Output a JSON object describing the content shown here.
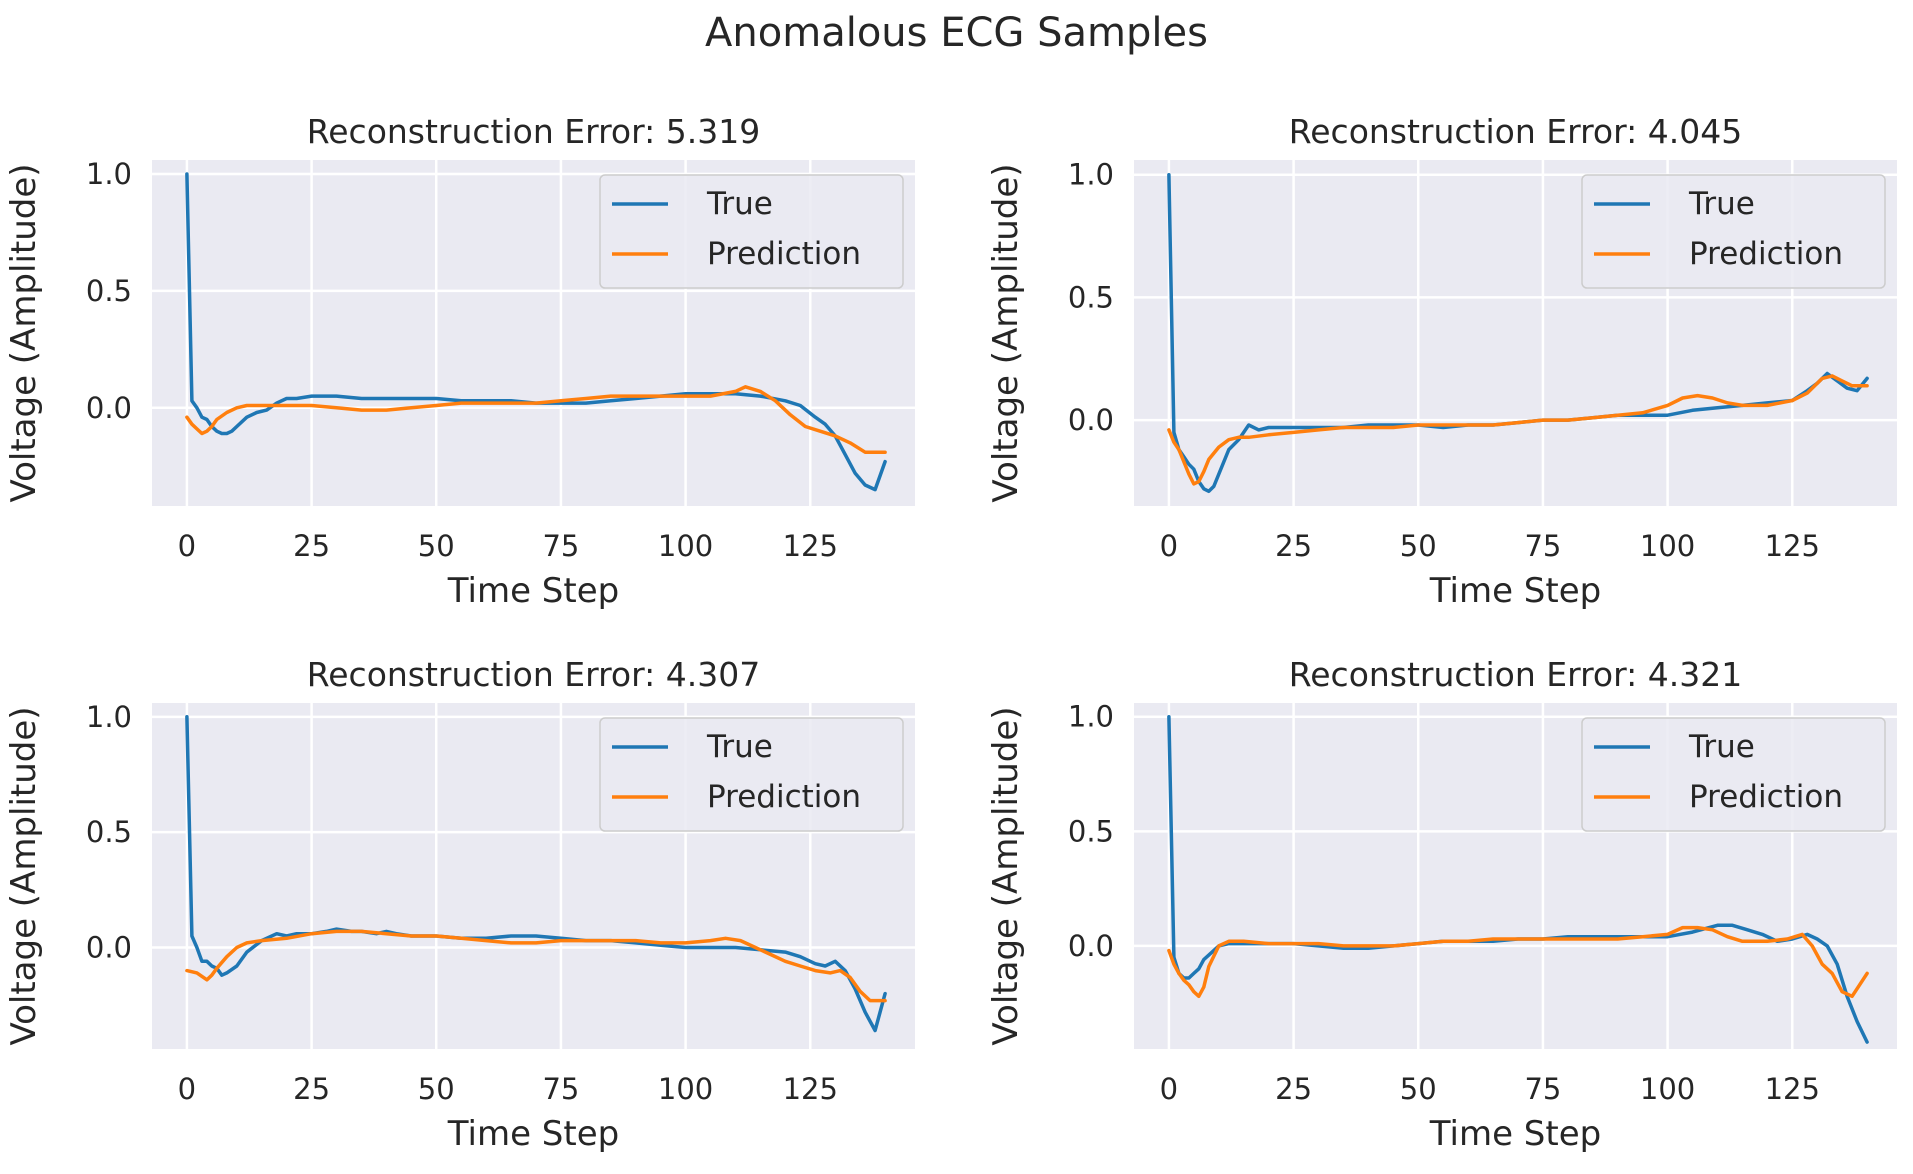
{
  "figure": {
    "title": "Anomalous ECG Samples",
    "colors": {
      "true": "#1f77b4",
      "prediction": "#ff7f0e",
      "plot_bg": "#eaeaf2",
      "grid": "#ffffff",
      "text": "#262626"
    }
  },
  "chart_data": [
    {
      "type": "line",
      "title": "Reconstruction Error: 5.319",
      "xlabel": "Time Step",
      "ylabel": "Voltage (Amplitude)",
      "xlim": [
        -7,
        146
      ],
      "ylim": [
        -0.42,
        1.06
      ],
      "xticks": [
        0,
        25,
        50,
        75,
        100,
        125
      ],
      "xtick_labels": [
        "0",
        "25",
        "50",
        "75",
        "100",
        "125"
      ],
      "yticks": [
        0.0,
        0.5,
        1.0
      ],
      "ytick_labels": [
        "0.0",
        "0.5",
        "1.0"
      ],
      "grid": true,
      "legend": "upper right",
      "series": [
        {
          "name": "True",
          "x": [
            0,
            1,
            2,
            3,
            4,
            5,
            6,
            7,
            8,
            9,
            10,
            12,
            14,
            16,
            18,
            20,
            22,
            25,
            30,
            35,
            40,
            45,
            50,
            55,
            60,
            65,
            70,
            75,
            80,
            85,
            90,
            95,
            100,
            105,
            110,
            115,
            120,
            123,
            126,
            128,
            130,
            132,
            134,
            136,
            138,
            140
          ],
          "y": [
            1.0,
            0.03,
            0.0,
            -0.04,
            -0.05,
            -0.08,
            -0.1,
            -0.11,
            -0.11,
            -0.1,
            -0.08,
            -0.04,
            -0.02,
            -0.01,
            0.02,
            0.04,
            0.04,
            0.05,
            0.05,
            0.04,
            0.04,
            0.04,
            0.04,
            0.03,
            0.03,
            0.03,
            0.02,
            0.02,
            0.02,
            0.03,
            0.04,
            0.05,
            0.06,
            0.06,
            0.06,
            0.05,
            0.03,
            0.01,
            -0.04,
            -0.07,
            -0.12,
            -0.2,
            -0.28,
            -0.33,
            -0.35,
            -0.23
          ]
        },
        {
          "name": "Prediction",
          "x": [
            0,
            1,
            2,
            3,
            4,
            5,
            6,
            8,
            10,
            12,
            15,
            20,
            25,
            30,
            35,
            40,
            45,
            50,
            55,
            60,
            65,
            70,
            75,
            80,
            85,
            90,
            95,
            100,
            105,
            110,
            112,
            115,
            118,
            121,
            124,
            127,
            130,
            133,
            136,
            138,
            140
          ],
          "y": [
            -0.04,
            -0.07,
            -0.09,
            -0.11,
            -0.1,
            -0.08,
            -0.05,
            -0.02,
            0.0,
            0.01,
            0.01,
            0.01,
            0.01,
            0.0,
            -0.01,
            -0.01,
            0.0,
            0.01,
            0.02,
            0.02,
            0.02,
            0.02,
            0.03,
            0.04,
            0.05,
            0.05,
            0.05,
            0.05,
            0.05,
            0.07,
            0.09,
            0.07,
            0.03,
            -0.03,
            -0.08,
            -0.1,
            -0.12,
            -0.15,
            -0.19,
            -0.19,
            -0.19
          ]
        }
      ]
    },
    {
      "type": "line",
      "title": "Reconstruction Error: 4.045",
      "xlabel": "Time Step",
      "ylabel": "Voltage (Amplitude)",
      "xlim": [
        -7,
        146
      ],
      "ylim": [
        -0.35,
        1.06
      ],
      "xticks": [
        0,
        25,
        50,
        75,
        100,
        125
      ],
      "xtick_labels": [
        "0",
        "25",
        "50",
        "75",
        "100",
        "125"
      ],
      "yticks": [
        0.0,
        0.5,
        1.0
      ],
      "ytick_labels": [
        "0.0",
        "0.5",
        "1.0"
      ],
      "grid": true,
      "legend": "upper right",
      "series": [
        {
          "name": "True",
          "x": [
            0,
            1,
            2,
            3,
            4,
            5,
            6,
            7,
            8,
            9,
            10,
            12,
            14,
            16,
            18,
            20,
            25,
            30,
            35,
            40,
            45,
            50,
            55,
            60,
            65,
            70,
            75,
            80,
            85,
            90,
            95,
            100,
            105,
            110,
            115,
            120,
            125,
            128,
            130,
            132,
            134,
            136,
            138,
            140
          ],
          "y": [
            1.0,
            -0.05,
            -0.12,
            -0.15,
            -0.18,
            -0.2,
            -0.25,
            -0.28,
            -0.29,
            -0.27,
            -0.22,
            -0.12,
            -0.08,
            -0.02,
            -0.04,
            -0.03,
            -0.03,
            -0.03,
            -0.03,
            -0.02,
            -0.02,
            -0.02,
            -0.03,
            -0.02,
            -0.02,
            -0.01,
            0.0,
            0.0,
            0.01,
            0.02,
            0.02,
            0.02,
            0.04,
            0.05,
            0.06,
            0.07,
            0.08,
            0.12,
            0.15,
            0.19,
            0.16,
            0.13,
            0.12,
            0.17
          ]
        },
        {
          "name": "Prediction",
          "x": [
            0,
            1,
            2,
            3,
            4,
            5,
            6,
            7,
            8,
            10,
            12,
            14,
            16,
            20,
            25,
            30,
            35,
            40,
            45,
            50,
            55,
            60,
            65,
            70,
            75,
            80,
            85,
            90,
            95,
            100,
            103,
            106,
            109,
            112,
            115,
            120,
            125,
            128,
            131,
            133,
            135,
            137,
            140
          ],
          "y": [
            -0.04,
            -0.09,
            -0.12,
            -0.17,
            -0.22,
            -0.26,
            -0.25,
            -0.21,
            -0.16,
            -0.11,
            -0.08,
            -0.07,
            -0.07,
            -0.06,
            -0.05,
            -0.04,
            -0.03,
            -0.03,
            -0.03,
            -0.02,
            -0.02,
            -0.02,
            -0.02,
            -0.01,
            0.0,
            0.0,
            0.01,
            0.02,
            0.03,
            0.06,
            0.09,
            0.1,
            0.09,
            0.07,
            0.06,
            0.06,
            0.08,
            0.11,
            0.17,
            0.18,
            0.16,
            0.14,
            0.14
          ]
        }
      ]
    },
    {
      "type": "line",
      "title": "Reconstruction Error: 4.307",
      "xlabel": "Time Step",
      "ylabel": "Voltage (Amplitude)",
      "xlim": [
        -7,
        146
      ],
      "ylim": [
        -0.44,
        1.06
      ],
      "xticks": [
        0,
        25,
        50,
        75,
        100,
        125
      ],
      "xtick_labels": [
        "0",
        "25",
        "50",
        "75",
        "100",
        "125"
      ],
      "yticks": [
        0.0,
        0.5,
        1.0
      ],
      "ytick_labels": [
        "0.0",
        "0.5",
        "1.0"
      ],
      "grid": true,
      "legend": "upper right",
      "series": [
        {
          "name": "True",
          "x": [
            0,
            1,
            2,
            3,
            4,
            5,
            6,
            7,
            8,
            10,
            12,
            15,
            18,
            20,
            22,
            25,
            28,
            30,
            33,
            35,
            38,
            40,
            42,
            45,
            50,
            55,
            60,
            65,
            70,
            75,
            80,
            85,
            90,
            95,
            100,
            105,
            110,
            115,
            120,
            123,
            126,
            128,
            130,
            132,
            134,
            136,
            138,
            140
          ],
          "y": [
            1.0,
            0.05,
            0.0,
            -0.06,
            -0.06,
            -0.08,
            -0.09,
            -0.12,
            -0.11,
            -0.08,
            -0.02,
            0.03,
            0.06,
            0.05,
            0.06,
            0.06,
            0.07,
            0.08,
            0.07,
            0.07,
            0.06,
            0.07,
            0.06,
            0.05,
            0.05,
            0.04,
            0.04,
            0.05,
            0.05,
            0.04,
            0.03,
            0.03,
            0.02,
            0.01,
            0.0,
            0.0,
            0.0,
            -0.01,
            -0.02,
            -0.04,
            -0.07,
            -0.08,
            -0.06,
            -0.1,
            -0.18,
            -0.28,
            -0.36,
            -0.2
          ]
        },
        {
          "name": "Prediction",
          "x": [
            0,
            2,
            4,
            5,
            6,
            8,
            10,
            12,
            15,
            20,
            25,
            30,
            35,
            40,
            45,
            50,
            55,
            60,
            65,
            70,
            75,
            80,
            85,
            90,
            95,
            100,
            105,
            108,
            111,
            114,
            117,
            120,
            123,
            126,
            129,
            131,
            133,
            135,
            137,
            140
          ],
          "y": [
            -0.1,
            -0.11,
            -0.14,
            -0.12,
            -0.09,
            -0.04,
            0.0,
            0.02,
            0.03,
            0.04,
            0.06,
            0.07,
            0.07,
            0.06,
            0.05,
            0.05,
            0.04,
            0.03,
            0.02,
            0.02,
            0.03,
            0.03,
            0.03,
            0.03,
            0.02,
            0.02,
            0.03,
            0.04,
            0.03,
            0.0,
            -0.03,
            -0.06,
            -0.08,
            -0.1,
            -0.11,
            -0.1,
            -0.13,
            -0.19,
            -0.23,
            -0.23
          ]
        }
      ]
    },
    {
      "type": "line",
      "title": "Reconstruction Error: 4.321",
      "xlabel": "Time Step",
      "ylabel": "Voltage (Amplitude)",
      "xlim": [
        -7,
        146
      ],
      "ylim": [
        -0.45,
        1.06
      ],
      "xticks": [
        0,
        25,
        50,
        75,
        100,
        125
      ],
      "xtick_labels": [
        "0",
        "25",
        "50",
        "75",
        "100",
        "125"
      ],
      "yticks": [
        0.0,
        0.5,
        1.0
      ],
      "ytick_labels": [
        "0.0",
        "0.5",
        "1.0"
      ],
      "grid": true,
      "legend": "upper right",
      "series": [
        {
          "name": "True",
          "x": [
            0,
            1,
            2,
            3,
            4,
            5,
            6,
            7,
            8,
            10,
            12,
            15,
            20,
            25,
            30,
            35,
            40,
            45,
            50,
            55,
            60,
            65,
            70,
            75,
            80,
            85,
            90,
            95,
            100,
            105,
            110,
            113,
            116,
            119,
            122,
            125,
            128,
            130,
            132,
            134,
            136,
            138,
            140
          ],
          "y": [
            1.0,
            -0.05,
            -0.12,
            -0.14,
            -0.14,
            -0.12,
            -0.1,
            -0.06,
            -0.04,
            0.0,
            0.01,
            0.01,
            0.01,
            0.01,
            0.0,
            -0.01,
            -0.01,
            0.0,
            0.01,
            0.02,
            0.02,
            0.02,
            0.03,
            0.03,
            0.04,
            0.04,
            0.04,
            0.04,
            0.04,
            0.06,
            0.09,
            0.09,
            0.07,
            0.05,
            0.02,
            0.03,
            0.05,
            0.03,
            0.0,
            -0.08,
            -0.22,
            -0.33,
            -0.42
          ]
        },
        {
          "name": "Prediction",
          "x": [
            0,
            1,
            2,
            3,
            4,
            5,
            6,
            7,
            8,
            10,
            12,
            15,
            20,
            25,
            30,
            35,
            40,
            45,
            50,
            55,
            60,
            65,
            70,
            75,
            80,
            85,
            90,
            95,
            100,
            103,
            106,
            109,
            112,
            115,
            120,
            124,
            127,
            129,
            131,
            133,
            135,
            137,
            140
          ],
          "y": [
            -0.02,
            -0.08,
            -0.12,
            -0.15,
            -0.17,
            -0.2,
            -0.22,
            -0.18,
            -0.09,
            0.0,
            0.02,
            0.02,
            0.01,
            0.01,
            0.01,
            0.0,
            0.0,
            0.0,
            0.01,
            0.02,
            0.02,
            0.03,
            0.03,
            0.03,
            0.03,
            0.03,
            0.03,
            0.04,
            0.05,
            0.08,
            0.08,
            0.07,
            0.04,
            0.02,
            0.02,
            0.03,
            0.05,
            0.0,
            -0.08,
            -0.12,
            -0.2,
            -0.22,
            -0.12
          ]
        }
      ]
    }
  ]
}
